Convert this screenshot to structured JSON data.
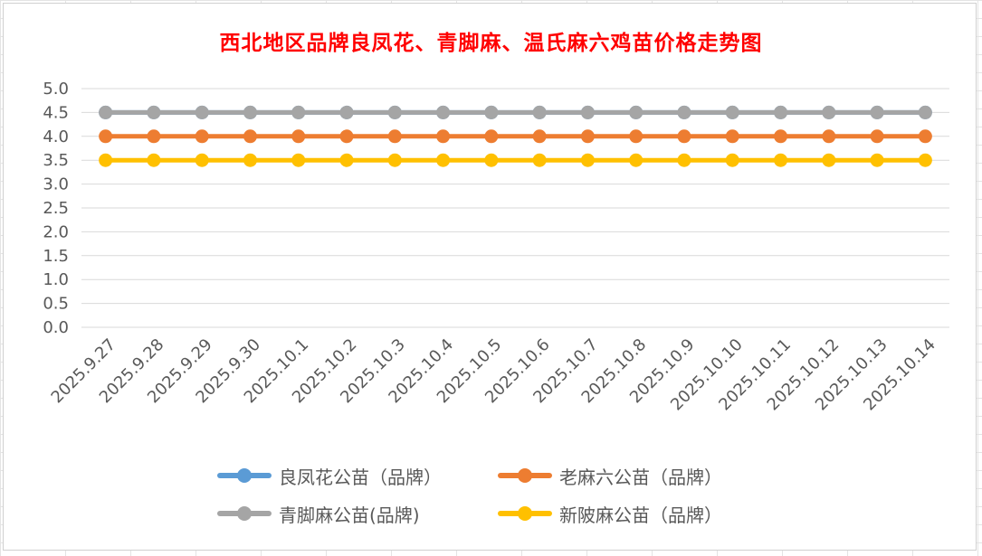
{
  "chart_data": {
    "type": "line",
    "title": "西北地区品牌良凤花、青脚麻、温氏麻六鸡苗价格走势图",
    "xlabel": "",
    "ylabel": "",
    "ylim": [
      0,
      5
    ],
    "yticks": [
      "0.0",
      "0.5",
      "1.0",
      "1.5",
      "2.0",
      "2.5",
      "3.0",
      "3.5",
      "4.0",
      "4.5",
      "5.0"
    ],
    "grid": true,
    "legend_position": "bottom",
    "categories": [
      "2025.9.27",
      "2025.9.28",
      "2025.9.29",
      "2025.9.30",
      "2025.10.1",
      "2025.10.2",
      "2025.10.3",
      "2025.10.4",
      "2025.10.5",
      "2025.10.6",
      "2025.10.7",
      "2025.10.8",
      "2025.10.9",
      "2025.10.10",
      "2025.10.11",
      "2025.10.12",
      "2025.10.13",
      "2025.10.14"
    ],
    "series": [
      {
        "name": "良凤花公苗（品牌）",
        "color": "#5b9bd5",
        "values": [
          4.5,
          4.5,
          4.5,
          4.5,
          4.5,
          4.5,
          4.5,
          4.5,
          4.5,
          4.5,
          4.5,
          4.5,
          4.5,
          4.5,
          4.5,
          4.5,
          4.5,
          4.5
        ]
      },
      {
        "name": "老麻六公苗（品牌）",
        "color": "#ed7d31",
        "values": [
          4.0,
          4.0,
          4.0,
          4.0,
          4.0,
          4.0,
          4.0,
          4.0,
          4.0,
          4.0,
          4.0,
          4.0,
          4.0,
          4.0,
          4.0,
          4.0,
          4.0,
          4.0
        ]
      },
      {
        "name": "青脚麻公苗(品牌)",
        "color": "#a5a5a5",
        "values": [
          4.5,
          4.5,
          4.5,
          4.5,
          4.5,
          4.5,
          4.5,
          4.5,
          4.5,
          4.5,
          4.5,
          4.5,
          4.5,
          4.5,
          4.5,
          4.5,
          4.5,
          4.5
        ]
      },
      {
        "name": "新陂麻公苗（品牌）",
        "color": "#ffc000",
        "values": [
          3.5,
          3.5,
          3.5,
          3.5,
          3.5,
          3.5,
          3.5,
          3.5,
          3.5,
          3.5,
          3.5,
          3.5,
          3.5,
          3.5,
          3.5,
          3.5,
          3.5,
          3.5
        ]
      }
    ]
  }
}
